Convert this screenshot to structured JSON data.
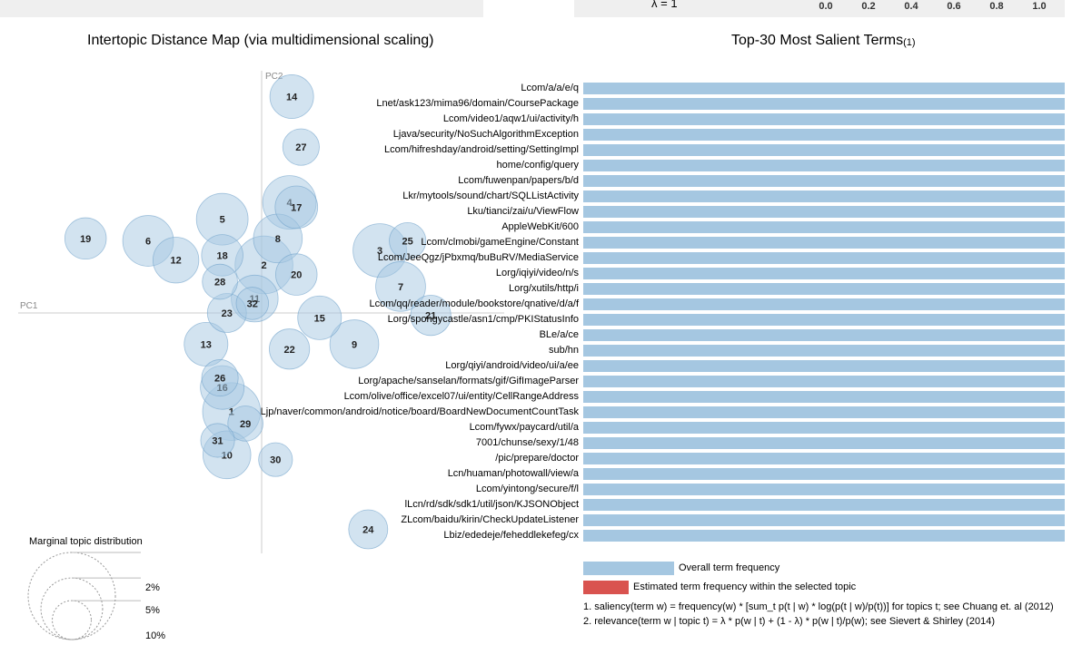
{
  "header": {
    "lambda_label": "λ = 1",
    "slider_ticks": [
      "0.0",
      "0.2",
      "0.4",
      "0.6",
      "0.8",
      "1.0"
    ]
  },
  "colors": {
    "bubble_fill": "#a5c7e1",
    "bubble_stroke": "#6b9ec8",
    "bar_overall": "#a5c7e1",
    "bar_estimated": "#d9534f",
    "axis": "#cccccc"
  },
  "chart_data": [
    {
      "type": "scatter",
      "title": "Intertopic Distance Map (via multidimensional scaling)",
      "xlabel": "PC1",
      "ylabel": "PC2",
      "xlim": [
        -1.0,
        1.0
      ],
      "ylim": [
        -1.0,
        1.0
      ],
      "topics": [
        {
          "id": "1",
          "x": -0.13,
          "y": -0.41,
          "size": 3.5
        },
        {
          "id": "2",
          "x": 0.01,
          "y": 0.2,
          "size": 3.5
        },
        {
          "id": "3",
          "x": 0.51,
          "y": 0.26,
          "size": 3.0
        },
        {
          "id": "4",
          "x": 0.12,
          "y": 0.46,
          "size": 3.0
        },
        {
          "id": "5",
          "x": -0.17,
          "y": 0.39,
          "size": 2.8
        },
        {
          "id": "6",
          "x": -0.49,
          "y": 0.3,
          "size": 2.7
        },
        {
          "id": "7",
          "x": 0.6,
          "y": 0.11,
          "size": 2.6
        },
        {
          "id": "8",
          "x": 0.07,
          "y": 0.31,
          "size": 2.5
        },
        {
          "id": "9",
          "x": 0.4,
          "y": -0.13,
          "size": 2.5
        },
        {
          "id": "10",
          "x": -0.15,
          "y": -0.59,
          "size": 2.4
        },
        {
          "id": "11",
          "x": -0.03,
          "y": 0.06,
          "size": 2.3
        },
        {
          "id": "12",
          "x": -0.37,
          "y": 0.22,
          "size": 2.2
        },
        {
          "id": "13",
          "x": -0.24,
          "y": -0.13,
          "size": 2.0
        },
        {
          "id": "14",
          "x": 0.13,
          "y": 0.9,
          "size": 2.0
        },
        {
          "id": "15",
          "x": 0.25,
          "y": -0.02,
          "size": 2.0
        },
        {
          "id": "16",
          "x": -0.17,
          "y": -0.31,
          "size": 2.0
        },
        {
          "id": "17",
          "x": 0.15,
          "y": 0.44,
          "size": 1.9
        },
        {
          "id": "18",
          "x": -0.17,
          "y": 0.24,
          "size": 1.8
        },
        {
          "id": "19",
          "x": -0.76,
          "y": 0.31,
          "size": 1.8
        },
        {
          "id": "20",
          "x": 0.15,
          "y": 0.16,
          "size": 1.8
        },
        {
          "id": "21",
          "x": 0.73,
          "y": -0.01,
          "size": 1.7
        },
        {
          "id": "22",
          "x": 0.12,
          "y": -0.15,
          "size": 1.7
        },
        {
          "id": "23",
          "x": -0.15,
          "y": 0.0,
          "size": 1.6
        },
        {
          "id": "24",
          "x": 0.46,
          "y": -0.9,
          "size": 1.6
        },
        {
          "id": "25",
          "x": 0.63,
          "y": 0.3,
          "size": 1.4
        },
        {
          "id": "26",
          "x": -0.18,
          "y": -0.27,
          "size": 1.4
        },
        {
          "id": "27",
          "x": 0.17,
          "y": 0.69,
          "size": 1.4
        },
        {
          "id": "28",
          "x": -0.18,
          "y": 0.13,
          "size": 1.3
        },
        {
          "id": "29",
          "x": -0.07,
          "y": -0.46,
          "size": 1.3
        },
        {
          "id": "30",
          "x": 0.06,
          "y": -0.61,
          "size": 1.2
        },
        {
          "id": "31",
          "x": -0.19,
          "y": -0.53,
          "size": 1.2
        },
        {
          "id": "32",
          "x": -0.04,
          "y": 0.04,
          "size": 1.1
        }
      ]
    },
    {
      "type": "bar",
      "orientation": "horizontal",
      "title": "Top-30 Most Salient Terms",
      "title_footnote": "(1)",
      "xlim": [
        0,
        1
      ],
      "series": [
        {
          "name": "Overall term frequency",
          "values": [
            1,
            1,
            1,
            1,
            1,
            1,
            1,
            1,
            1,
            1,
            1,
            1,
            1,
            1,
            1,
            1,
            1,
            1,
            1,
            1,
            1,
            1,
            1,
            1,
            1,
            1,
            1,
            1,
            1,
            1
          ]
        },
        {
          "name": "Estimated term frequency within the selected topic",
          "values": [
            0,
            0,
            0,
            0,
            0,
            0,
            0,
            0,
            0,
            0,
            0,
            0,
            0,
            0,
            0,
            0,
            0,
            0,
            0,
            0,
            0,
            0,
            0,
            0,
            0,
            0,
            0,
            0,
            0,
            0
          ]
        }
      ],
      "categories": [
        "Lcom/a/a/e/q",
        "Lnet/ask123/mima96/domain/CoursePackage",
        "Lcom/video1/aqw1/ui/activity/h",
        "Ljava/security/NoSuchAlgorithmException",
        "Lcom/hifreshday/android/setting/SettingImpl",
        "home/config/query",
        "Lcom/fuwenpan/papers/b/d",
        "Lkr/mytools/sound/chart/SQLListActivity",
        "Lku/tianci/zai/u/ViewFlow",
        "AppleWebKit/600",
        "Lcom/clmobi/gameEngine/Constant",
        "Lcom/JeeQgz/jPbxmq/buBuRV/MediaService",
        "Lorg/iqiyi/video/n/s",
        "Lorg/xutils/http/i",
        "Lcom/qq/reader/module/bookstore/qnative/d/a/f",
        "Lorg/spongycastle/asn1/cmp/PKIStatusInfo",
        "BLe/a/ce",
        "sub/hn",
        "Lorg/qiyi/android/video/ui/a/ee",
        "Lorg/apache/sanselan/formats/gif/GifImageParser",
        "Lcom/olive/office/excel07/ui/entity/CellRangeAddress",
        "Ljp/naver/common/android/notice/board/BoardNewDocumentCountTask",
        "Lcom/fywx/paycard/util/a",
        "7001/chunse/sexy/1/48",
        "/pic/prepare/doctor",
        "Lcn/huaman/photowall/view/a",
        "Lcom/yintong/secure/f/l",
        "lLcn/rd/sdk/sdk1/util/json/KJSONObject",
        "ZLcom/baidu/kirin/CheckUpdateListener",
        "Lbiz/ededeje/feheddlekefeg/cx"
      ]
    }
  ],
  "marginal": {
    "title": "Marginal topic distribution",
    "labels": [
      "2%",
      "5%",
      "10%"
    ],
    "levels": [
      2,
      5,
      10
    ]
  },
  "legend": {
    "overall": "Overall term frequency",
    "estimated": "Estimated term frequency within the selected topic"
  },
  "notes": {
    "saliency": "1. saliency(term w) = frequency(w) * [sum_t p(t | w) * log(p(t | w)/p(t))] for topics t; see Chuang et. al (2012)",
    "relevance": "2. relevance(term w | topic t) = λ * p(w | t) + (1 - λ) * p(w | t)/p(w); see Sievert & Shirley (2014)"
  }
}
